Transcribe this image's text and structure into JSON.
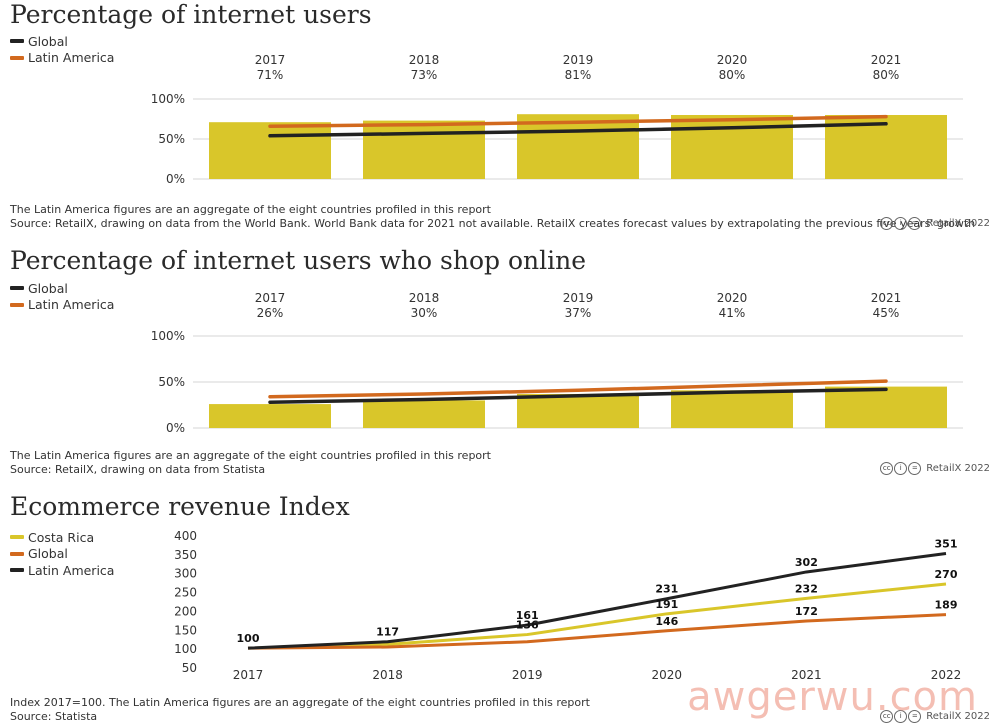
{
  "panel1": {
    "title": "Percentage of internet users",
    "legend": [
      {
        "label": "Global",
        "color": "#222222"
      },
      {
        "label": "Latin America",
        "color": "#d2691e"
      }
    ],
    "note": "The Latin America figures are an aggregate of the eight countries profiled in this report",
    "source": "Source: RetailX, drawing on data from the World Bank. World Bank data for 2021 not available. RetailX creates forecast values by extrapolating the previous five years' growth",
    "brand": "RetailX 2022"
  },
  "panel2": {
    "title": "Percentage of internet users who shop online",
    "legend": [
      {
        "label": "Global",
        "color": "#222222"
      },
      {
        "label": "Latin America",
        "color": "#d2691e"
      }
    ],
    "note": "The Latin America figures are an aggregate of the eight countries profiled in this report",
    "source": "Source: RetailX, drawing on data from Statista",
    "brand": "RetailX 2022"
  },
  "panel3": {
    "title": "Ecommerce revenue Index",
    "legend": [
      {
        "label": "Costa Rica",
        "color": "#d9c62a"
      },
      {
        "label": "Global",
        "color": "#d2691e"
      },
      {
        "label": "Latin America",
        "color": "#222222"
      }
    ],
    "note": "Index 2017=100. The Latin America figures are an aggregate of the eight countries profiled in this report",
    "source": "Source: Statista",
    "brand": "RetailX 2022"
  },
  "watermark": "awgerwu.com",
  "chart_data": [
    {
      "type": "bar",
      "title": "Percentage of internet users",
      "categories": [
        "2017",
        "2018",
        "2019",
        "2020",
        "2021"
      ],
      "bar_labels": [
        "71%",
        "73%",
        "81%",
        "80%",
        "80%"
      ],
      "bar_values": [
        71,
        73,
        81,
        80,
        80
      ],
      "bar_color": "#d9c62a",
      "series": [
        {
          "name": "Global",
          "type": "line",
          "values": [
            54,
            57,
            60,
            64,
            69
          ],
          "color": "#222222"
        },
        {
          "name": "Latin America",
          "type": "line",
          "values": [
            66,
            68,
            71,
            74,
            78
          ],
          "color": "#d2691e"
        }
      ],
      "ylim": [
        0,
        100
      ],
      "yticks": [
        "0%",
        "50%",
        "100%"
      ],
      "grid": true
    },
    {
      "type": "bar",
      "title": "Percentage of internet users who shop online",
      "categories": [
        "2017",
        "2018",
        "2019",
        "2020",
        "2021"
      ],
      "bar_labels": [
        "26%",
        "30%",
        "37%",
        "41%",
        "45%"
      ],
      "bar_values": [
        26,
        30,
        37,
        41,
        45
      ],
      "bar_color": "#d9c62a",
      "series": [
        {
          "name": "Global",
          "type": "line",
          "values": [
            28,
            31,
            35,
            39,
            42
          ],
          "color": "#222222"
        },
        {
          "name": "Latin America",
          "type": "line",
          "values": [
            34,
            37,
            41,
            46,
            51
          ],
          "color": "#d2691e"
        }
      ],
      "ylim": [
        0,
        100
      ],
      "yticks": [
        "0%",
        "50%",
        "100%"
      ],
      "grid": true
    },
    {
      "type": "line",
      "title": "Ecommerce revenue Index",
      "x": [
        "2017",
        "2018",
        "2019",
        "2020",
        "2021",
        "2022"
      ],
      "series": [
        {
          "name": "Costa Rica",
          "values": [
            100,
            110,
            136,
            191,
            232,
            270
          ],
          "color": "#d9c62a",
          "labels": [
            "",
            "",
            "136",
            "191",
            "232",
            "270"
          ]
        },
        {
          "name": "Global",
          "values": [
            100,
            103,
            117,
            146,
            172,
            189
          ],
          "color": "#d2691e",
          "labels": [
            "",
            "",
            "",
            "146",
            "172",
            "189"
          ]
        },
        {
          "name": "Latin America",
          "values": [
            100,
            117,
            161,
            231,
            302,
            351
          ],
          "color": "#222222",
          "labels": [
            "100",
            "117",
            "161",
            "231",
            "302",
            "351"
          ]
        }
      ],
      "ylim": [
        50,
        400
      ],
      "yticks": [
        "50",
        "100",
        "150",
        "200",
        "250",
        "300",
        "350",
        "400"
      ],
      "grid": false
    }
  ]
}
